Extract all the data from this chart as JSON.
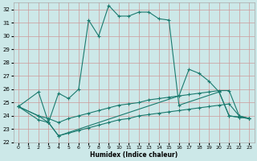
{
  "xlabel": "Humidex (Indice chaleur)",
  "bg_color": "#cce8e8",
  "grid_color": "#aaaaaa",
  "line_color": "#1a7a6e",
  "xlim": [
    -0.5,
    23.5
  ],
  "ylim": [
    22,
    32.5
  ],
  "xticks": [
    0,
    1,
    2,
    3,
    4,
    5,
    6,
    7,
    8,
    9,
    10,
    11,
    12,
    13,
    14,
    15,
    16,
    17,
    18,
    19,
    20,
    21,
    22,
    23
  ],
  "yticks": [
    22,
    23,
    24,
    25,
    26,
    27,
    28,
    29,
    30,
    31,
    32
  ],
  "series": [
    {
      "x": [
        0,
        2,
        3,
        4,
        5,
        6,
        7,
        8,
        9,
        10,
        11,
        12,
        13,
        14,
        15,
        16,
        20,
        21,
        22,
        23
      ],
      "y": [
        24.7,
        25.8,
        23.5,
        25.7,
        25.3,
        26.0,
        31.2,
        30.0,
        32.3,
        31.5,
        31.5,
        31.8,
        31.8,
        31.3,
        31.2,
        24.8,
        25.8,
        24.0,
        23.9,
        23.8
      ]
    },
    {
      "x": [
        0,
        2,
        3,
        4,
        16,
        17,
        18,
        19,
        20,
        21,
        22,
        23
      ],
      "y": [
        24.7,
        24.0,
        23.5,
        22.5,
        25.5,
        27.5,
        27.2,
        26.6,
        25.8,
        24.0,
        23.9,
        23.8
      ]
    },
    {
      "x": [
        0,
        2,
        3,
        4,
        5,
        6,
        7,
        8,
        9,
        10,
        11,
        12,
        13,
        14,
        15,
        16,
        17,
        18,
        19,
        20,
        21,
        22,
        23
      ],
      "y": [
        24.7,
        24.0,
        23.8,
        23.5,
        23.8,
        24.0,
        24.2,
        24.4,
        24.6,
        24.8,
        24.9,
        25.0,
        25.2,
        25.3,
        25.4,
        25.5,
        25.6,
        25.7,
        25.8,
        25.9,
        25.9,
        24.0,
        23.8
      ]
    },
    {
      "x": [
        0,
        2,
        3,
        4,
        5,
        6,
        7,
        8,
        9,
        10,
        11,
        12,
        13,
        14,
        15,
        16,
        17,
        18,
        19,
        20,
        21,
        22,
        23
      ],
      "y": [
        24.7,
        23.7,
        23.5,
        22.5,
        22.7,
        22.9,
        23.1,
        23.3,
        23.5,
        23.7,
        23.8,
        24.0,
        24.1,
        24.2,
        24.3,
        24.4,
        24.5,
        24.6,
        24.7,
        24.8,
        24.9,
        24.0,
        23.8
      ]
    }
  ]
}
